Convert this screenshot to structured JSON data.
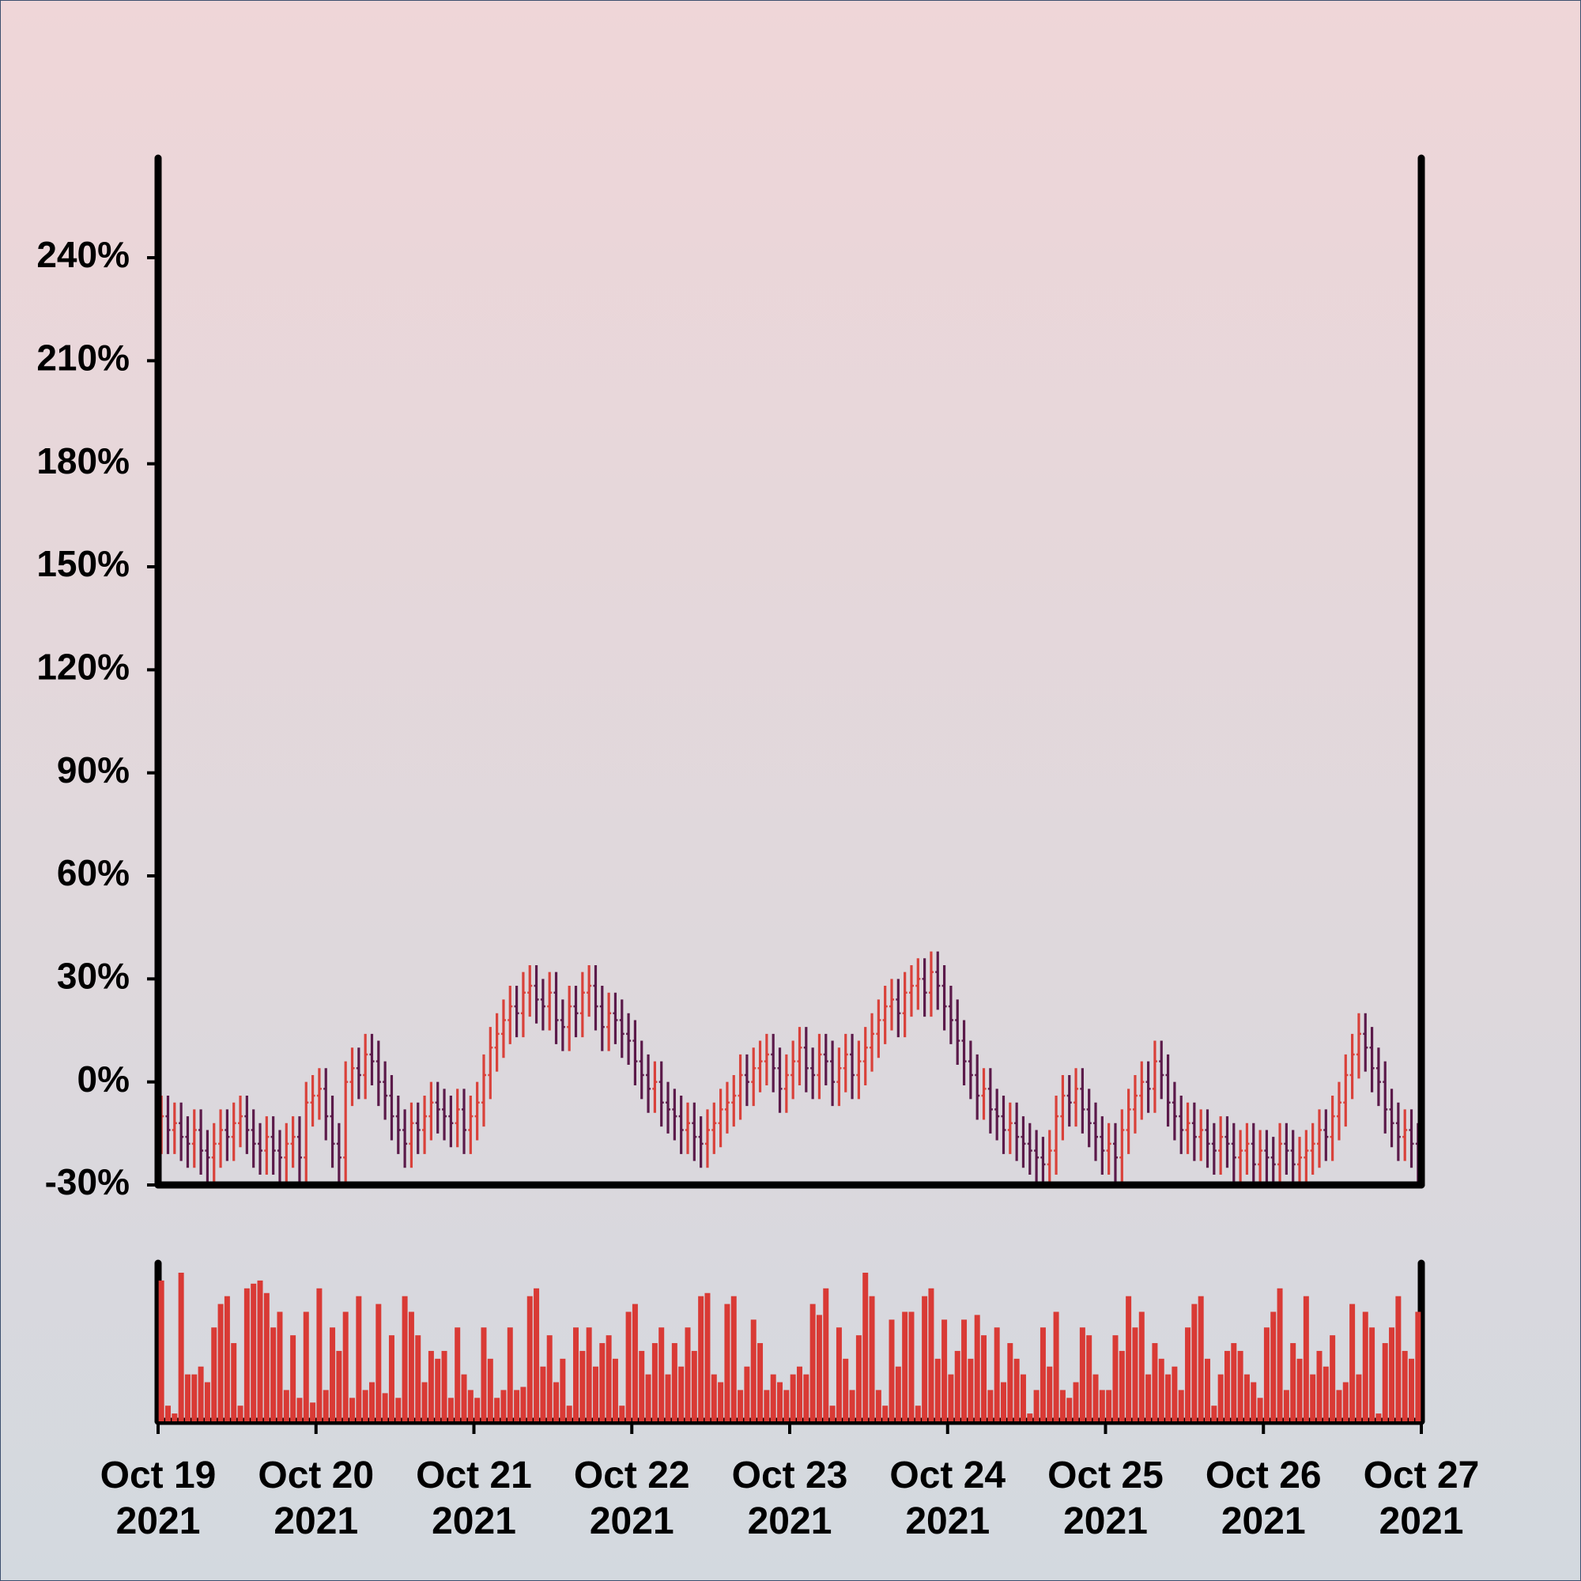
{
  "chart_data": {
    "type": "ohlc",
    "xlim": [
      "2021-10-19",
      "2021-10-27"
    ],
    "xticks": [
      {
        "value": "2021-10-19",
        "label": "Oct 19\n2021"
      },
      {
        "value": "2021-10-20",
        "label": "Oct 20\n2021"
      },
      {
        "value": "2021-10-21",
        "label": "Oct 21\n2021"
      },
      {
        "value": "2021-10-22",
        "label": "Oct 22\n2021"
      },
      {
        "value": "2021-10-23",
        "label": "Oct 23\n2021"
      },
      {
        "value": "2021-10-24",
        "label": "Oct 24\n2021"
      },
      {
        "value": "2021-10-25",
        "label": "Oct 25\n2021"
      },
      {
        "value": "2021-10-26",
        "label": "Oct 26\n2021"
      },
      {
        "value": "2021-10-27",
        "label": "Oct 27\n2021"
      }
    ],
    "ylim": [
      -30,
      269
    ],
    "yticks": [
      {
        "value": -30,
        "label": "-30%"
      },
      {
        "value": 0,
        "label": "0%"
      },
      {
        "value": 30,
        "label": "30%"
      },
      {
        "value": 60,
        "label": "60%"
      },
      {
        "value": 90,
        "label": "90%"
      },
      {
        "value": 120,
        "label": "120%"
      },
      {
        "value": 150,
        "label": "150%"
      },
      {
        "value": 180,
        "label": "180%"
      },
      {
        "value": 210,
        "label": "210%"
      },
      {
        "value": 240,
        "label": "240%"
      }
    ],
    "up_color": "#d9413a",
    "down_color": "#5b1a4a",
    "volume_color": "#d93a35",
    "open": [
      -14,
      -10,
      -14,
      -12,
      -16,
      -18,
      -14,
      -20,
      -22,
      -18,
      -14,
      -16,
      -12,
      -10,
      -14,
      -18,
      -20,
      -16,
      -20,
      -22,
      -18,
      -16,
      -22,
      -6,
      -4,
      -2,
      -10,
      -18,
      -22,
      0,
      4,
      2,
      8,
      6,
      0,
      -4,
      -10,
      -14,
      -18,
      -12,
      -14,
      -10,
      -6,
      -8,
      -10,
      -12,
      -8,
      -14,
      -10,
      -6,
      2,
      10,
      14,
      18,
      22,
      20,
      26,
      28,
      24,
      22,
      26,
      18,
      16,
      22,
      20,
      26,
      28,
      22,
      16,
      20,
      18,
      14,
      12,
      6,
      2,
      -2,
      0,
      -6,
      -8,
      -10,
      -14,
      -12,
      -16,
      -18,
      -14,
      -12,
      -8,
      -6,
      -4,
      2,
      0,
      4,
      6,
      8,
      4,
      -2,
      2,
      6,
      10,
      4,
      2,
      8,
      6,
      0,
      4,
      8,
      2,
      6,
      10,
      14,
      18,
      22,
      24,
      20,
      26,
      28,
      30,
      26,
      32,
      28,
      22,
      18,
      12,
      6,
      2,
      -4,
      -2,
      -8,
      -10,
      -14,
      -12,
      -16,
      -18,
      -20,
      -22,
      -24,
      -20,
      -10,
      -4,
      -6,
      -2,
      -8,
      -12,
      -16,
      -20,
      -18,
      -22,
      -14,
      -8,
      -4,
      0,
      -2,
      6,
      2,
      -6,
      -10,
      -14,
      -12,
      -16,
      -14,
      -18,
      -20,
      -16,
      -18,
      -22,
      -20,
      -18,
      -24,
      -20,
      -22,
      -24,
      -18,
      -20,
      -24,
      -22,
      -20,
      -18,
      -14,
      -16,
      -10,
      -6,
      2,
      8,
      14,
      10,
      4,
      0,
      -8,
      -12,
      -16,
      -14,
      -18
    ],
    "high": [
      -4,
      -4,
      -6,
      -6,
      -10,
      -8,
      -8,
      -14,
      -12,
      -8,
      -8,
      -6,
      -4,
      -4,
      -8,
      -12,
      -10,
      -10,
      -14,
      -12,
      -10,
      -10,
      0,
      2,
      4,
      4,
      -4,
      -12,
      6,
      10,
      10,
      14,
      14,
      12,
      6,
      2,
      -4,
      -8,
      -6,
      -6,
      -4,
      0,
      0,
      -2,
      -4,
      -2,
      -2,
      -4,
      0,
      8,
      16,
      20,
      24,
      28,
      28,
      32,
      34,
      34,
      30,
      32,
      32,
      24,
      28,
      28,
      32,
      34,
      34,
      28,
      26,
      26,
      24,
      20,
      18,
      12,
      8,
      6,
      6,
      0,
      -2,
      -4,
      -6,
      -6,
      -10,
      -8,
      -6,
      -2,
      0,
      2,
      8,
      8,
      10,
      12,
      14,
      14,
      10,
      8,
      12,
      16,
      16,
      10,
      14,
      14,
      12,
      10,
      14,
      14,
      12,
      16,
      20,
      24,
      28,
      30,
      30,
      32,
      34,
      36,
      36,
      38,
      38,
      34,
      28,
      24,
      18,
      12,
      8,
      4,
      4,
      -2,
      -4,
      -6,
      -6,
      -10,
      -12,
      -14,
      -16,
      -14,
      -4,
      2,
      2,
      4,
      4,
      -2,
      -6,
      -10,
      -12,
      -12,
      -8,
      -2,
      2,
      6,
      6,
      12,
      12,
      8,
      0,
      -4,
      -6,
      -6,
      -8,
      -8,
      -12,
      -10,
      -10,
      -12,
      -14,
      -12,
      -12,
      -14,
      -14,
      -16,
      -12,
      -12,
      -14,
      -16,
      -14,
      -12,
      -8,
      -8,
      -4,
      0,
      8,
      14,
      20,
      20,
      16,
      10,
      6,
      -2,
      -6,
      -8,
      -8,
      -12
    ],
    "low": [
      -21,
      -21,
      -21,
      -23,
      -25,
      -25,
      -27,
      -29,
      -29,
      -25,
      -23,
      -23,
      -19,
      -21,
      -25,
      -27,
      -27,
      -27,
      -29,
      -29,
      -25,
      -29,
      -29,
      -13,
      -11,
      -17,
      -25,
      -29,
      -29,
      -7,
      -5,
      -5,
      -1,
      -7,
      -11,
      -17,
      -21,
      -25,
      -25,
      -21,
      -21,
      -17,
      -15,
      -17,
      -19,
      -19,
      -21,
      -21,
      -17,
      -13,
      -5,
      3,
      7,
      11,
      13,
      13,
      19,
      17,
      15,
      15,
      11,
      9,
      9,
      13,
      13,
      19,
      15,
      9,
      9,
      11,
      7,
      5,
      -1,
      -5,
      -9,
      -9,
      -13,
      -15,
      -17,
      -21,
      -21,
      -23,
      -25,
      -25,
      -21,
      -19,
      -15,
      -13,
      -11,
      -7,
      -7,
      -3,
      -1,
      -3,
      -9,
      -9,
      -5,
      -1,
      -3,
      -5,
      -5,
      -1,
      -7,
      -7,
      -3,
      -5,
      -5,
      -1,
      3,
      7,
      11,
      15,
      13,
      13,
      19,
      21,
      19,
      19,
      21,
      15,
      11,
      5,
      -1,
      -5,
      -11,
      -11,
      -15,
      -17,
      -21,
      -21,
      -23,
      -25,
      -27,
      -29,
      -31,
      -31,
      -27,
      -17,
      -13,
      -13,
      -15,
      -19,
      -23,
      -27,
      -27,
      -29,
      -29,
      -21,
      -15,
      -11,
      -9,
      -9,
      -5,
      -13,
      -17,
      -21,
      -21,
      -23,
      -23,
      -25,
      -27,
      -27,
      -25,
      -29,
      -29,
      -27,
      -31,
      -31,
      -29,
      -31,
      -31,
      -27,
      -31,
      -31,
      -29,
      -27,
      -25,
      -23,
      -23,
      -17,
      -13,
      -5,
      1,
      3,
      -3,
      -7,
      -15,
      -19,
      -23,
      -23,
      -25,
      -31
    ],
    "close": [
      -10,
      -14,
      -12,
      -16,
      -18,
      -14,
      -20,
      -22,
      -18,
      -14,
      -16,
      -12,
      -10,
      -14,
      -18,
      -20,
      -16,
      -20,
      -22,
      -18,
      -16,
      -22,
      -6,
      -4,
      -2,
      -10,
      -18,
      -22,
      0,
      4,
      2,
      8,
      6,
      0,
      -4,
      -10,
      -14,
      -18,
      -12,
      -14,
      -10,
      -6,
      -8,
      -10,
      -12,
      -8,
      -14,
      -10,
      -6,
      2,
      10,
      14,
      18,
      22,
      20,
      26,
      28,
      24,
      22,
      26,
      18,
      16,
      22,
      20,
      26,
      28,
      22,
      16,
      20,
      18,
      14,
      12,
      6,
      2,
      -2,
      0,
      -6,
      -8,
      -10,
      -14,
      -12,
      -16,
      -18,
      -14,
      -12,
      -8,
      -6,
      -4,
      2,
      0,
      4,
      6,
      8,
      4,
      -2,
      2,
      6,
      10,
      4,
      2,
      8,
      6,
      0,
      4,
      8,
      2,
      6,
      10,
      14,
      18,
      22,
      24,
      20,
      26,
      28,
      30,
      26,
      32,
      28,
      22,
      18,
      12,
      6,
      2,
      -4,
      -2,
      -8,
      -10,
      -14,
      -12,
      -16,
      -18,
      -20,
      -22,
      -24,
      -20,
      -10,
      -4,
      -6,
      -2,
      -8,
      -12,
      -16,
      -20,
      -18,
      -22,
      -14,
      -8,
      -4,
      0,
      -2,
      6,
      2,
      -6,
      -10,
      -14,
      -12,
      -16,
      -14,
      -18,
      -20,
      -16,
      -18,
      -22,
      -20,
      -18,
      -24,
      -20,
      -22,
      -24,
      -18,
      -20,
      -24,
      -22,
      -20,
      -18,
      -14,
      -16,
      -10,
      -6,
      2,
      8,
      14,
      10,
      4,
      0,
      -8,
      -12,
      -16,
      -14,
      -18,
      -24
    ],
    "volume": [
      90,
      10,
      5,
      95,
      30,
      30,
      35,
      25,
      60,
      75,
      80,
      50,
      10,
      85,
      88,
      90,
      82,
      60,
      70,
      20,
      55,
      15,
      70,
      12,
      85,
      20,
      60,
      45,
      70,
      15,
      80,
      20,
      25,
      75,
      18,
      55,
      15,
      80,
      70,
      55,
      25,
      45,
      40,
      45,
      15,
      60,
      30,
      20,
      15,
      60,
      40,
      15,
      20,
      60,
      20,
      22,
      80,
      85,
      35,
      55,
      25,
      40,
      10,
      60,
      45,
      60,
      35,
      50,
      55,
      40,
      10,
      70,
      75,
      45,
      30,
      50,
      60,
      30,
      50,
      35,
      60,
      45,
      80,
      82,
      30,
      25,
      75,
      80,
      20,
      35,
      65,
      50,
      20,
      30,
      25,
      20,
      30,
      35,
      30,
      75,
      68,
      85,
      10,
      60,
      40,
      20,
      55,
      95,
      80,
      20,
      10,
      65,
      35,
      70,
      70,
      10,
      80,
      85,
      40,
      65,
      30,
      45,
      65,
      40,
      68,
      55,
      20,
      60,
      25,
      50,
      40,
      30,
      5,
      20,
      60,
      35,
      70,
      20,
      15,
      25,
      60,
      55,
      30,
      20,
      20,
      55,
      45,
      80,
      60,
      70,
      30,
      50,
      40,
      30,
      35,
      20,
      60,
      75,
      80,
      40,
      10,
      30,
      45,
      50,
      45,
      30,
      25,
      15,
      60,
      70,
      85,
      20,
      50,
      40,
      80,
      30,
      45,
      35,
      55,
      20,
      25,
      75,
      30,
      70,
      60,
      5,
      50,
      60,
      80,
      45,
      40,
      70
    ]
  }
}
